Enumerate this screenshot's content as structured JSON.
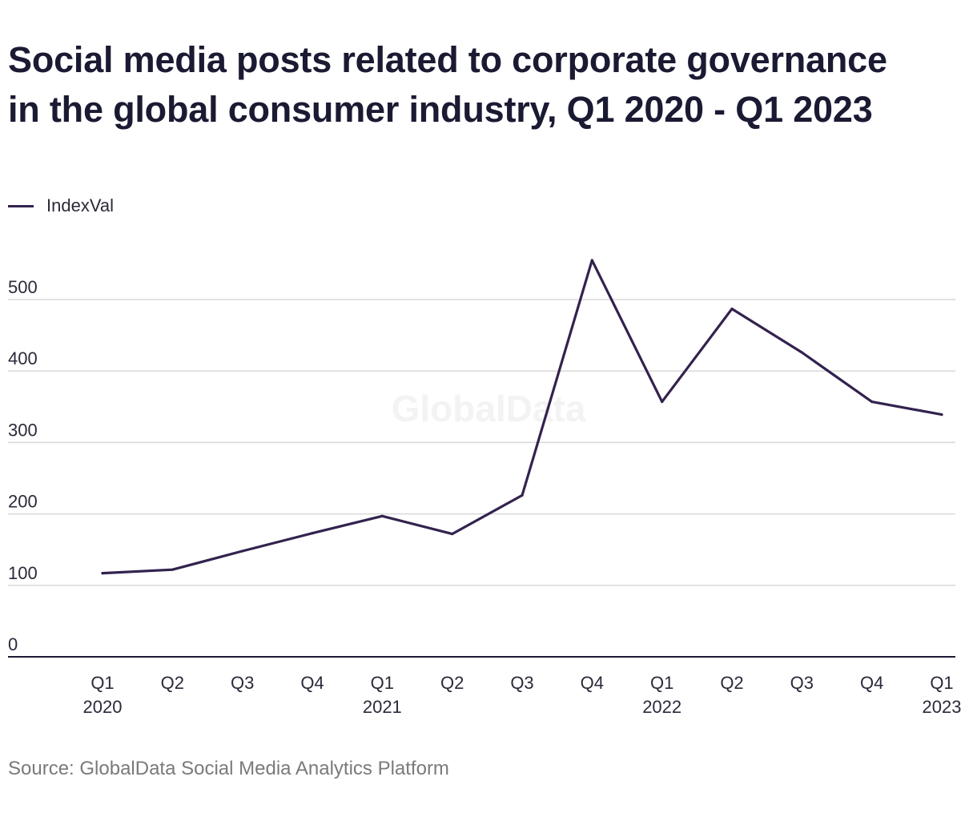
{
  "title_lines": [
    "Social media posts related to corporate governance",
    "in the global consumer industry, Q1 2020 - Q1 2023"
  ],
  "watermark": "GlobalData",
  "source": "Source: GlobalData Social Media Analytics Platform",
  "colors": {
    "line": "#33224e",
    "grid": "#d9d9d9",
    "axis": "#1b1a33",
    "text": "#2a2a3a",
    "watermark": "#f3f3f3"
  },
  "chart_data": {
    "type": "line",
    "title": "Social media posts related to corporate governance in the global consumer industry, Q1 2020 - Q1 2023",
    "xlabel": "",
    "ylabel": "",
    "categories": [
      [
        "Q1",
        "2020"
      ],
      [
        "Q2",
        ""
      ],
      [
        "Q3",
        ""
      ],
      [
        "Q4",
        ""
      ],
      [
        "Q1",
        "2021"
      ],
      [
        "Q2",
        ""
      ],
      [
        "Q3",
        ""
      ],
      [
        "Q4",
        ""
      ],
      [
        "Q1",
        "2022"
      ],
      [
        "Q2",
        ""
      ],
      [
        "Q3",
        ""
      ],
      [
        "Q4",
        ""
      ],
      [
        "Q1",
        "2023"
      ]
    ],
    "series": [
      {
        "name": "IndexVal",
        "values": [
          117,
          122,
          148,
          173,
          197,
          172,
          226,
          555,
          357,
          487,
          426,
          357,
          339
        ]
      }
    ],
    "ylim": [
      0,
      500
    ],
    "yticks": [
      0,
      100,
      200,
      300,
      400,
      500
    ],
    "grid": true,
    "legend_position": "top-left"
  }
}
